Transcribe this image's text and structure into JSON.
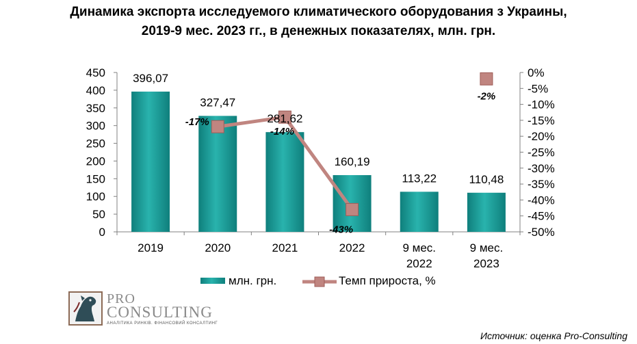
{
  "title": {
    "line1": "Динамика экспорта исследуемого климатического оборудования з Украины,",
    "line2": "2019-9 мес. 2023 гг., в денежных показателях, млн. грн."
  },
  "chart_data": {
    "type": "bar",
    "categories": [
      [
        "2019"
      ],
      [
        "2020"
      ],
      [
        "2021"
      ],
      [
        "2022"
      ],
      [
        "9 мес.",
        "2022"
      ],
      [
        "9 мес.",
        "2023"
      ]
    ],
    "series": [
      {
        "name": "млн. грн.",
        "type": "bar",
        "axis": "left",
        "color": "#1a9a96",
        "values": [
          396.07,
          327.47,
          281.62,
          160.19,
          113.22,
          110.48
        ],
        "labels": [
          "396,07",
          "327,47",
          "281,62",
          "160,19",
          "113,22",
          "110,48"
        ]
      },
      {
        "name": "Темп прироста, %",
        "type": "line",
        "axis": "right",
        "color": "#c08580",
        "segments": [
          [
            1,
            2,
            3
          ],
          [
            5
          ]
        ],
        "values": [
          null,
          -17,
          -14,
          -43,
          null,
          -2
        ],
        "labels": [
          null,
          "-17%",
          "-14%",
          "-43%",
          null,
          "-2%"
        ]
      }
    ],
    "y_left": {
      "min": 0,
      "max": 450,
      "step": 50,
      "ticks": [
        "0",
        "50",
        "100",
        "150",
        "200",
        "250",
        "300",
        "350",
        "400",
        "450"
      ]
    },
    "y_right": {
      "min": -50,
      "max": 0,
      "step": 5,
      "ticks": [
        "-50%",
        "-45%",
        "-40%",
        "-35%",
        "-30%",
        "-25%",
        "-20%",
        "-15%",
        "-10%",
        "-5%",
        "0%"
      ]
    },
    "legend": {
      "position": "bottom",
      "items": [
        "млн. грн.",
        "Темп прироста, %"
      ]
    },
    "grid": false
  },
  "logo": {
    "pro": "PRO",
    "consulting": "CONSULTING",
    "tagline": "АНАЛІТИКА РИНКІВ. ФІНАНСОВИЙ КОНСАЛТИНГ"
  },
  "source": "Источник: оценка Pro-Consulting"
}
